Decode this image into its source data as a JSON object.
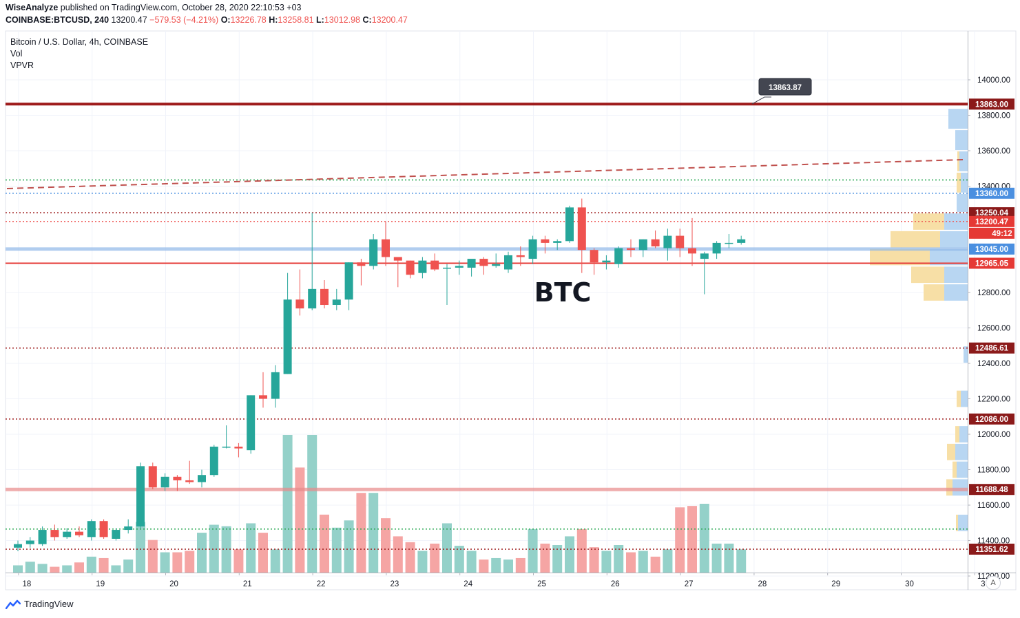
{
  "header": {
    "publisher": "WiseAnalyze",
    "published_text": "published on TradingView.com, October 28, 2020 22:10:53 +03",
    "symbol": "COINBASE:BTCUSD, 240",
    "last": "13200.47",
    "change": "−579.53 (−4.21%)",
    "o_label": "O:",
    "o": "13226.78",
    "h_label": "H:",
    "h": "13258.81",
    "l_label": "L:",
    "l": "13012.98",
    "c_label": "C:",
    "c": "13200.47"
  },
  "legend": {
    "series": "Bitcoin / U.S. Dollar, 4h, COINBASE",
    "vol": "Vol",
    "vpvr": "VPVR"
  },
  "annotation": {
    "text": "BTC",
    "peak_label": "13863.87",
    "peak_value": 13863.87
  },
  "countdown": "49:12",
  "footer": {
    "brand": "TradingView"
  },
  "auto_button": "A",
  "colors": {
    "up": "#26a69a",
    "down": "#ef5350",
    "up_vol": "#94d1c9",
    "down_vol": "#f5a5a4",
    "resistance": "#9e1b1b",
    "support": "#e53935"
  },
  "chart_data": {
    "type": "candlestick",
    "title": "Bitcoin / U.S. Dollar, 4h, COINBASE",
    "xlabel": "",
    "ylabel": "",
    "ylim": [
      11100,
      14150
    ],
    "y_ticks": [
      11200,
      11400,
      11600,
      11800,
      12000,
      12200,
      12400,
      12600,
      12800,
      13400,
      13600,
      13800,
      14000
    ],
    "y_tick_labels": [
      "11200.00",
      "11400.00",
      "11600.00",
      "11800.00",
      "12000.00",
      "12200.00",
      "12400.00",
      "12600.00",
      "12800.00",
      "13400.00",
      "13600.00",
      "13800.00",
      "14000.00"
    ],
    "x_ticks": [
      {
        "label": "18",
        "idx": 0.5
      },
      {
        "label": "19",
        "idx": 6.5
      },
      {
        "label": "20",
        "idx": 12.5
      },
      {
        "label": "21",
        "idx": 18.5
      },
      {
        "label": "22",
        "idx": 24.5
      },
      {
        "label": "23",
        "idx": 30.5
      },
      {
        "label": "24",
        "idx": 36.5
      },
      {
        "label": "25",
        "idx": 42.5
      },
      {
        "label": "26",
        "idx": 48.5
      },
      {
        "label": "27",
        "idx": 54.5
      },
      {
        "label": "28",
        "idx": 60.5
      },
      {
        "label": "29",
        "idx": 66.5
      },
      {
        "label": "30",
        "idx": 72.5
      },
      {
        "label": "3",
        "idx": 78.5
      }
    ],
    "candles": [
      {
        "o": 11360,
        "h": 11400,
        "l": 11340,
        "c": 11380,
        "v": 10
      },
      {
        "o": 11380,
        "h": 11420,
        "l": 11360,
        "c": 11400,
        "v": 15
      },
      {
        "o": 11380,
        "h": 11480,
        "l": 11370,
        "c": 11460,
        "v": 12
      },
      {
        "o": 11460,
        "h": 11490,
        "l": 11400,
        "c": 11420,
        "v": 8
      },
      {
        "o": 11420,
        "h": 11470,
        "l": 11410,
        "c": 11450,
        "v": 10
      },
      {
        "o": 11450,
        "h": 11480,
        "l": 11420,
        "c": 11430,
        "v": 14
      },
      {
        "o": 11420,
        "h": 11520,
        "l": 11400,
        "c": 11510,
        "v": 22
      },
      {
        "o": 11510,
        "h": 11520,
        "l": 11410,
        "c": 11420,
        "v": 20
      },
      {
        "o": 11410,
        "h": 11470,
        "l": 11400,
        "c": 11460,
        "v": 10
      },
      {
        "o": 11460,
        "h": 11520,
        "l": 11440,
        "c": 11480,
        "v": 18
      },
      {
        "o": 11480,
        "h": 11840,
        "l": 11470,
        "c": 11820,
        "v": 70
      },
      {
        "o": 11820,
        "h": 11840,
        "l": 11690,
        "c": 11700,
        "v": 45
      },
      {
        "o": 11700,
        "h": 11780,
        "l": 11680,
        "c": 11760,
        "v": 28
      },
      {
        "o": 11760,
        "h": 11770,
        "l": 11680,
        "c": 11740,
        "v": 28
      },
      {
        "o": 11740,
        "h": 11850,
        "l": 11720,
        "c": 11730,
        "v": 30
      },
      {
        "o": 11730,
        "h": 11800,
        "l": 11700,
        "c": 11770,
        "v": 55
      },
      {
        "o": 11770,
        "h": 11940,
        "l": 11760,
        "c": 11930,
        "v": 66
      },
      {
        "o": 11930,
        "h": 12050,
        "l": 11920,
        "c": 11930,
        "v": 64
      },
      {
        "o": 11930,
        "h": 11950,
        "l": 11870,
        "c": 11920,
        "v": 32
      },
      {
        "o": 11910,
        "h": 12220,
        "l": 11890,
        "c": 12220,
        "v": 68
      },
      {
        "o": 12220,
        "h": 12350,
        "l": 12150,
        "c": 12200,
        "v": 55
      },
      {
        "o": 12200,
        "h": 12390,
        "l": 12150,
        "c": 12350,
        "v": 32
      },
      {
        "o": 12340,
        "h": 12910,
        "l": 12340,
        "c": 12760,
        "v": 190
      },
      {
        "o": 12760,
        "h": 12930,
        "l": 12670,
        "c": 12710,
        "v": 145
      },
      {
        "o": 12710,
        "h": 13250,
        "l": 12700,
        "c": 12820,
        "v": 190
      },
      {
        "o": 12820,
        "h": 12870,
        "l": 12710,
        "c": 12730,
        "v": 80
      },
      {
        "o": 12730,
        "h": 12820,
        "l": 12700,
        "c": 12760,
        "v": 62
      },
      {
        "o": 12760,
        "h": 12970,
        "l": 12700,
        "c": 12970,
        "v": 72
      },
      {
        "o": 12970,
        "h": 12990,
        "l": 12840,
        "c": 12950,
        "v": 110
      },
      {
        "o": 12950,
        "h": 13130,
        "l": 12930,
        "c": 13100,
        "v": 110
      },
      {
        "o": 13100,
        "h": 13200,
        "l": 12950,
        "c": 13000,
        "v": 75
      },
      {
        "o": 13000,
        "h": 13000,
        "l": 12830,
        "c": 12980,
        "v": 50
      },
      {
        "o": 12980,
        "h": 12980,
        "l": 12880,
        "c": 12900,
        "v": 42
      },
      {
        "o": 12910,
        "h": 13000,
        "l": 12880,
        "c": 12980,
        "v": 30
      },
      {
        "o": 12980,
        "h": 13020,
        "l": 12920,
        "c": 12930,
        "v": 40
      },
      {
        "o": 12940,
        "h": 12960,
        "l": 12730,
        "c": 12940,
        "v": 68
      },
      {
        "o": 12940,
        "h": 12980,
        "l": 12900,
        "c": 12950,
        "v": 37
      },
      {
        "o": 12940,
        "h": 12980,
        "l": 12890,
        "c": 12990,
        "v": 30
      },
      {
        "o": 12990,
        "h": 13000,
        "l": 12900,
        "c": 12950,
        "v": 18
      },
      {
        "o": 12950,
        "h": 13020,
        "l": 12940,
        "c": 12960,
        "v": 20
      },
      {
        "o": 12930,
        "h": 13030,
        "l": 12910,
        "c": 13010,
        "v": 18
      },
      {
        "o": 13010,
        "h": 13060,
        "l": 12950,
        "c": 13000,
        "v": 20
      },
      {
        "o": 12990,
        "h": 13120,
        "l": 12960,
        "c": 13100,
        "v": 60
      },
      {
        "o": 13100,
        "h": 13120,
        "l": 13020,
        "c": 13080,
        "v": 40
      },
      {
        "o": 13080,
        "h": 13100,
        "l": 13040,
        "c": 13090,
        "v": 38
      },
      {
        "o": 13090,
        "h": 13290,
        "l": 13080,
        "c": 13280,
        "v": 50
      },
      {
        "o": 13280,
        "h": 13330,
        "l": 12910,
        "c": 13040,
        "v": 60
      },
      {
        "o": 13040,
        "h": 13050,
        "l": 12900,
        "c": 12970,
        "v": 35
      },
      {
        "o": 12970,
        "h": 13010,
        "l": 12930,
        "c": 12980,
        "v": 30
      },
      {
        "o": 12960,
        "h": 13060,
        "l": 12940,
        "c": 13050,
        "v": 38
      },
      {
        "o": 13050,
        "h": 13100,
        "l": 13000,
        "c": 13040,
        "v": 28
      },
      {
        "o": 13040,
        "h": 13100,
        "l": 13000,
        "c": 13100,
        "v": 30
      },
      {
        "o": 13100,
        "h": 13150,
        "l": 13050,
        "c": 13060,
        "v": 22
      },
      {
        "o": 13050,
        "h": 13160,
        "l": 12980,
        "c": 13120,
        "v": 32
      },
      {
        "o": 13120,
        "h": 13160,
        "l": 13000,
        "c": 13050,
        "v": 90
      },
      {
        "o": 13050,
        "h": 13220,
        "l": 12950,
        "c": 13020,
        "v": 92
      },
      {
        "o": 12990,
        "h": 13030,
        "l": 12790,
        "c": 13020,
        "v": 95
      },
      {
        "o": 13020,
        "h": 13090,
        "l": 12990,
        "c": 13080,
        "v": 40
      },
      {
        "o": 13080,
        "h": 13130,
        "l": 13050,
        "c": 13080,
        "v": 40
      },
      {
        "o": 13080,
        "h": 13120,
        "l": 13070,
        "c": 13100,
        "v": 32
      }
    ],
    "levels": [
      {
        "value": 13863,
        "label": "13863.00",
        "style": "solid-thick",
        "color": "#9e1b1b"
      },
      {
        "value": 13360,
        "label": "13360.00",
        "style": "dotted",
        "color": "#4a8fe0"
      },
      {
        "value": 13250.04,
        "label": "13250.04",
        "style": "dotted",
        "color": "#9e1b1b"
      },
      {
        "value": 13200.47,
        "label": "13200.47",
        "style": "dotted",
        "color": "#ef5350"
      },
      {
        "value": 13045,
        "label": "13045.00",
        "style": "solid-band",
        "color": "#90b8e8"
      },
      {
        "value": 12965.05,
        "label": "12965.05",
        "style": "solid",
        "color": "#e53935"
      },
      {
        "value": 12486.61,
        "label": "12486.61",
        "style": "dotted",
        "color": "#9e1b1b"
      },
      {
        "value": 12086,
        "label": "12086.00",
        "style": "dotted",
        "color": "#9e1b1b"
      },
      {
        "value": 11688.48,
        "label": "11688.48",
        "style": "solid-band",
        "color": "#e88a8a"
      },
      {
        "value": 11351.62,
        "label": "11351.62",
        "style": "dotted",
        "color": "#9e1b1b"
      }
    ]
  }
}
